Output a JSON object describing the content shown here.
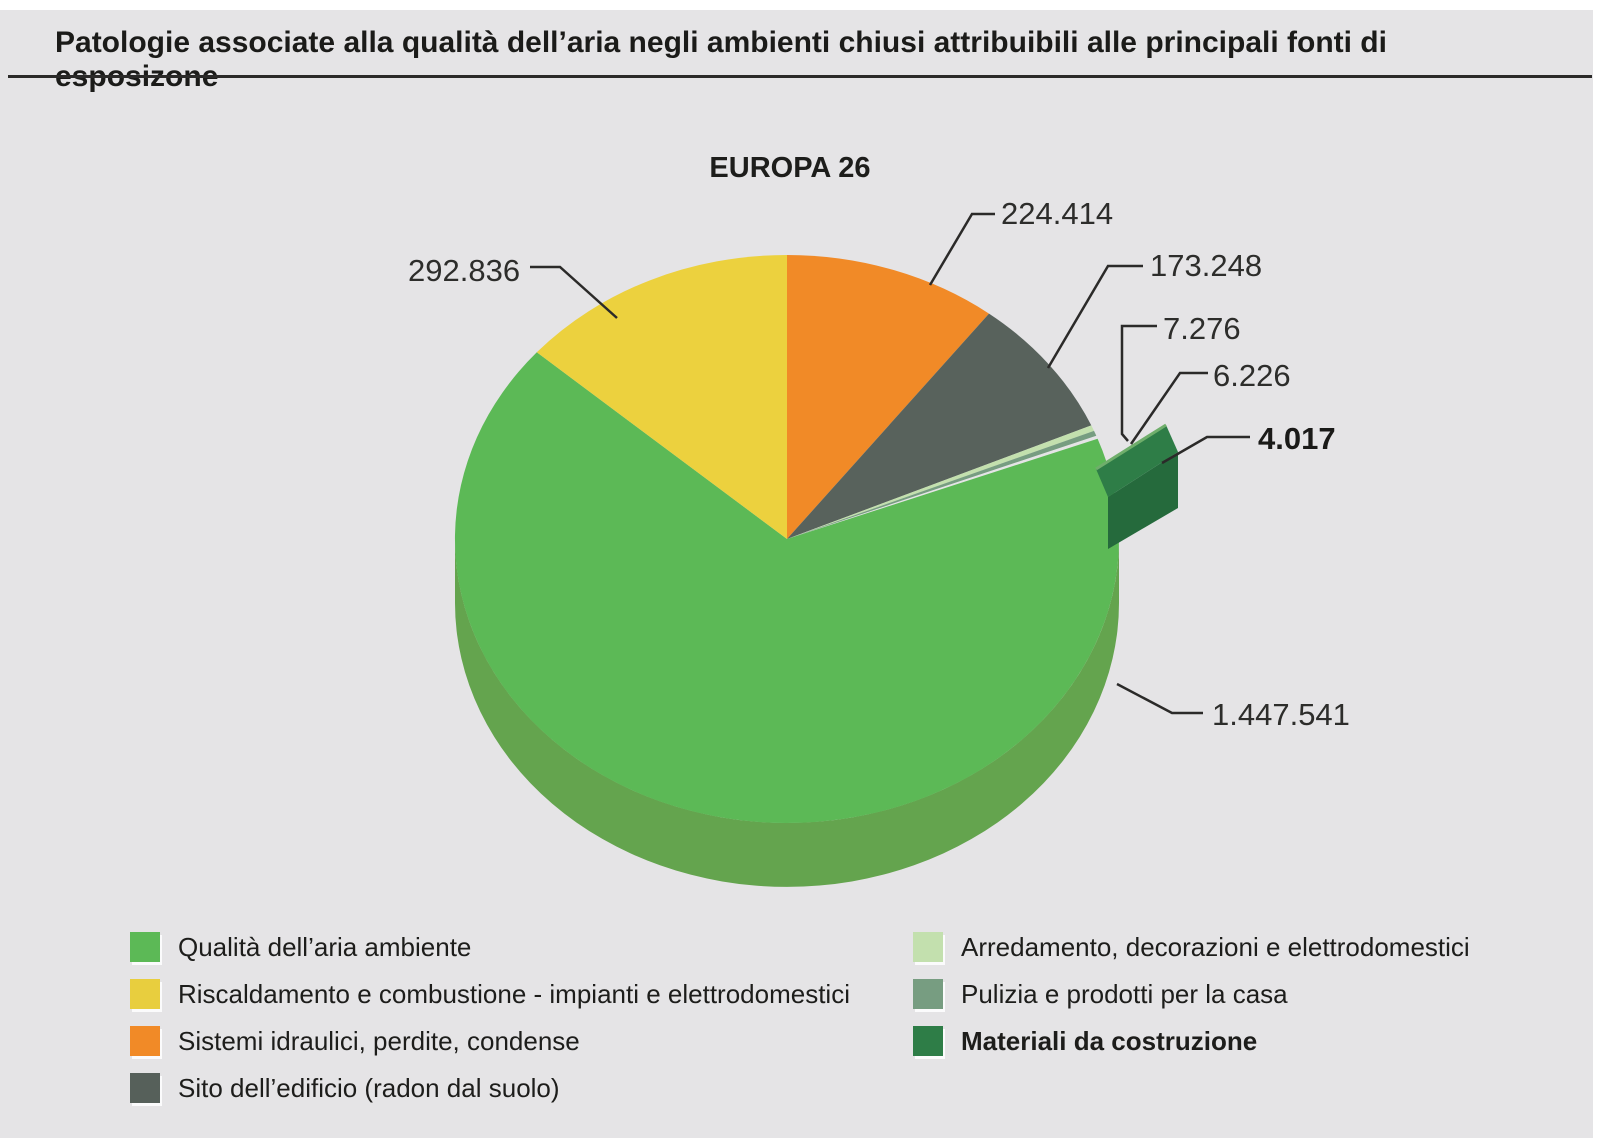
{
  "page": {
    "title": "Patologie associate alla qualità dell’aria negli ambienti chiusi attribuibili alle principali fonti di esposizone"
  },
  "chart_data": {
    "type": "pie",
    "title": "EUROPA 26",
    "style": "3d-pie-exploded-slice",
    "direction": "clockwise",
    "start_angle_deg_from_top": 0,
    "total": 2155558,
    "legend_position": "bottom",
    "slices": [
      {
        "id": "sistemi-idraulici",
        "name": "Sistemi idraulici, perdite, condense",
        "value": 224414,
        "display": "224.414",
        "color": "#f18a27",
        "exploded": false
      },
      {
        "id": "sito-edificio",
        "name": "Sito dell’edificio (radon dal suolo)",
        "value": 173248,
        "display": "173.248",
        "color": "#58625c",
        "exploded": false
      },
      {
        "id": "arredamento",
        "name": "Arredamento, decorazioni e elettrodomestici",
        "value": 7276,
        "display": "7.276",
        "color": "#c3e0ae",
        "exploded": false
      },
      {
        "id": "pulizia",
        "name": "Pulizia e prodotti per la casa",
        "value": 6226,
        "display": "6.226",
        "color": "#779d81",
        "exploded": false
      },
      {
        "id": "materiali-costruzione",
        "name": "Materiali da costruzione",
        "value": 4017,
        "display": "4.017",
        "color": "#2e7d47",
        "side_color": "#256a3c",
        "exploded": true
      },
      {
        "id": "qualita-aria",
        "name": "Qualità dell’aria ambiente",
        "value": 1447541,
        "display": "1.447.541",
        "color": "#5cb956",
        "side_color": "#64a44e",
        "exploded": false
      },
      {
        "id": "riscaldamento",
        "name": "Riscaldamento e combustione - impianti e elettrodomestici",
        "value": 292836,
        "display": "292.836",
        "color": "#ecd13e",
        "exploded": false
      }
    ]
  },
  "legend": {
    "left": [
      {
        "label": "Qualità dell’aria ambiente",
        "color": "#5cb956",
        "bold": false
      },
      {
        "label": "Riscaldamento e combustione - impianti e elettrodomestici",
        "color": "#e8ce3e",
        "bold": false
      },
      {
        "label": "Sistemi idraulici, perdite, condense",
        "color": "#f18a27",
        "bold": false
      },
      {
        "label": "Sito dell’edificio (radon dal suolo)",
        "color": "#56605a",
        "bold": false
      }
    ],
    "right": [
      {
        "label": "Arredamento, decorazioni e elettrodomestici",
        "color": "#c3e0ae",
        "bold": false
      },
      {
        "label": "Pulizia e prodotti per la casa",
        "color": "#779d81",
        "bold": false
      },
      {
        "label": "Materiali da costruzione",
        "color": "#2e7d47",
        "bold": true
      }
    ]
  }
}
